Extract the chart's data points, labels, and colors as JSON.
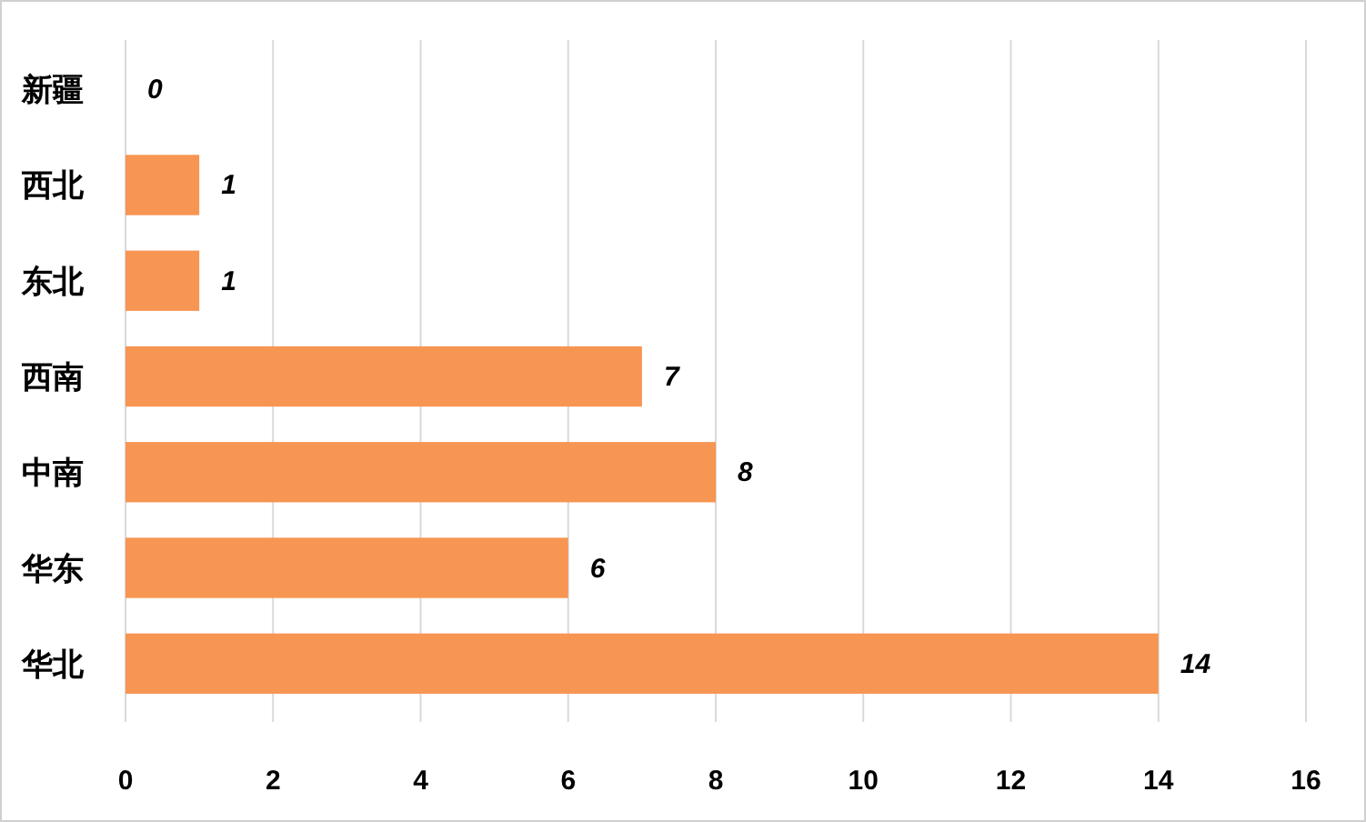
{
  "chart_data": {
    "type": "bar",
    "orientation": "horizontal",
    "categories": [
      "新疆",
      "西北",
      "东北",
      "西南",
      "中南",
      "华东",
      "华北"
    ],
    "values": [
      0,
      1,
      1,
      7,
      8,
      6,
      14
    ],
    "color": "#f79552",
    "xlim": [
      0,
      16
    ],
    "xticks": [
      0,
      2,
      4,
      6,
      8,
      10,
      12,
      14,
      16
    ],
    "grid": "x",
    "data_labels": true
  }
}
